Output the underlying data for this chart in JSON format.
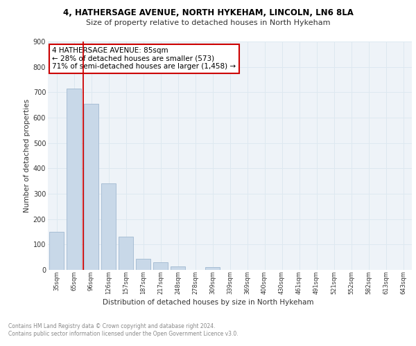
{
  "title1": "4, HATHERSAGE AVENUE, NORTH HYKEHAM, LINCOLN, LN6 8LA",
  "title2": "Size of property relative to detached houses in North Hykeham",
  "xlabel": "Distribution of detached houses by size in North Hykeham",
  "ylabel": "Number of detached properties",
  "bar_labels": [
    "35sqm",
    "65sqm",
    "96sqm",
    "126sqm",
    "157sqm",
    "187sqm",
    "217sqm",
    "248sqm",
    "278sqm",
    "309sqm",
    "339sqm",
    "369sqm",
    "400sqm",
    "430sqm",
    "461sqm",
    "491sqm",
    "521sqm",
    "552sqm",
    "582sqm",
    "613sqm",
    "643sqm"
  ],
  "bar_values": [
    150,
    715,
    655,
    340,
    130,
    43,
    30,
    13,
    0,
    10,
    0,
    0,
    0,
    0,
    0,
    0,
    0,
    0,
    0,
    0,
    0
  ],
  "bar_color": "#c8d8e8",
  "bar_edgecolor": "#a0b8d0",
  "annotation_text": "4 HATHERSAGE AVENUE: 85sqm\n← 28% of detached houses are smaller (573)\n71% of semi-detached houses are larger (1,458) →",
  "annotation_box_color": "#ffffff",
  "annotation_box_edgecolor": "#cc0000",
  "grid_color": "#dde8f0",
  "background_color": "#eef3f8",
  "footer_text": "Contains HM Land Registry data © Crown copyright and database right 2024.\nContains public sector information licensed under the Open Government Licence v3.0.",
  "ylim": [
    0,
    900
  ],
  "yticks": [
    0,
    100,
    200,
    300,
    400,
    500,
    600,
    700,
    800,
    900
  ],
  "red_line_x": 1.55
}
